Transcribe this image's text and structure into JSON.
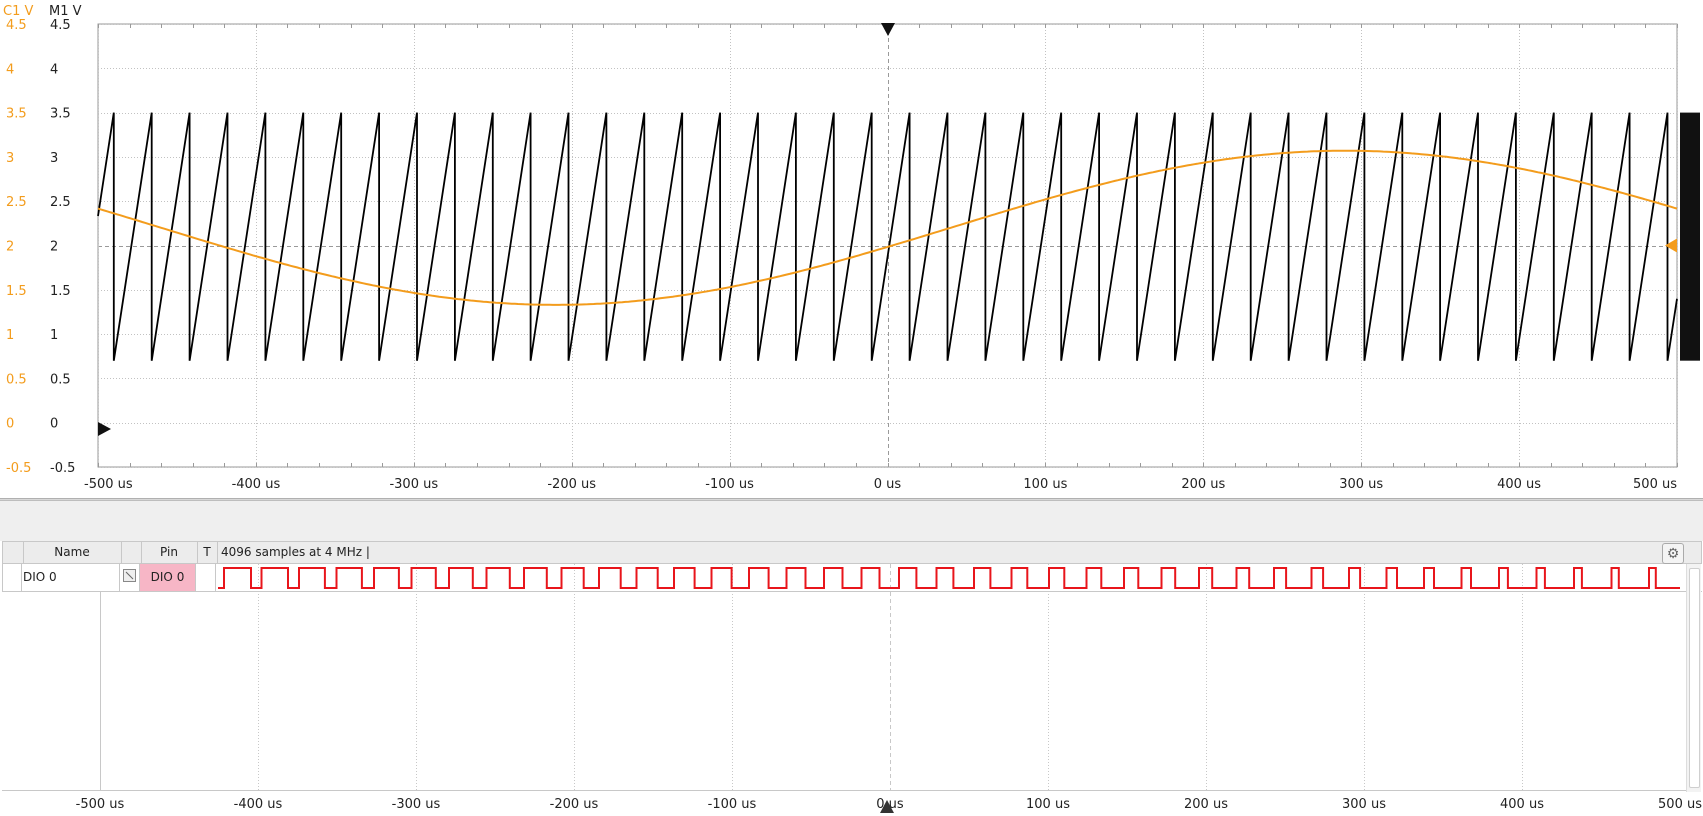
{
  "scope": {
    "channel_labels": {
      "c1": "C1 V",
      "m1": "M1 V"
    },
    "c1_ticks": [
      "4.5",
      "4",
      "3.5",
      "3",
      "2.5",
      "2",
      "1.5",
      "1",
      "0.5",
      "0",
      "-0.5"
    ],
    "m1_ticks": [
      "4.5",
      "4",
      "3.5",
      "3",
      "2.5",
      "2",
      "1.5",
      "1",
      "0.5",
      "0",
      "-0.5"
    ],
    "x_ticks": [
      "-500 us",
      "-400 us",
      "-300 us",
      "-200 us",
      "-100 us",
      "0 us",
      "100 us",
      "200 us",
      "300 us",
      "400 us",
      "500 us"
    ],
    "colors": {
      "c1": "#f39c1c",
      "m1": "#000000",
      "grid": "#b8b8b8",
      "text": "#222222"
    }
  },
  "logic": {
    "header": {
      "name": "Name",
      "pin": "Pin",
      "trigger": "T",
      "info": "4096 samples at 4 MHz |"
    },
    "channel": {
      "name": "DIO  0",
      "pin": "DIO 0"
    },
    "x_ticks": [
      "-500 us",
      "-400 us",
      "-300 us",
      "-200 us",
      "-100 us",
      "0 us",
      "100 us",
      "200 us",
      "300 us",
      "400 us",
      "500 us"
    ],
    "colors": {
      "signal": "#e8151b",
      "pin_bg": "#f7b6c6"
    }
  },
  "chart_data": [
    {
      "type": "line",
      "xlabel": "",
      "ylabel": "",
      "xlim": [
        -500,
        500
      ],
      "ylim": [
        -0.5,
        4.5
      ],
      "grid": true,
      "series": [
        {
          "name": "C1 V",
          "color": "#f39c1c",
          "shape": "sine",
          "offset": 2.2,
          "amplitude": 0.87,
          "peak_at_us": 290,
          "period_us": 1000
        },
        {
          "name": "M1 V",
          "color": "#000000",
          "shape": "sawtooth",
          "min": 0.7,
          "max": 3.5,
          "period_us": 24,
          "first_reset_us": -490
        }
      ]
    },
    {
      "type": "line",
      "xlim": [
        -500,
        500
      ],
      "series": [
        {
          "name": "DIO  0",
          "color": "#e8151b",
          "shape": "pwm",
          "low_us_range": [
            6,
            30
          ],
          "high_us_range": [
            17,
            2
          ]
        }
      ]
    }
  ]
}
